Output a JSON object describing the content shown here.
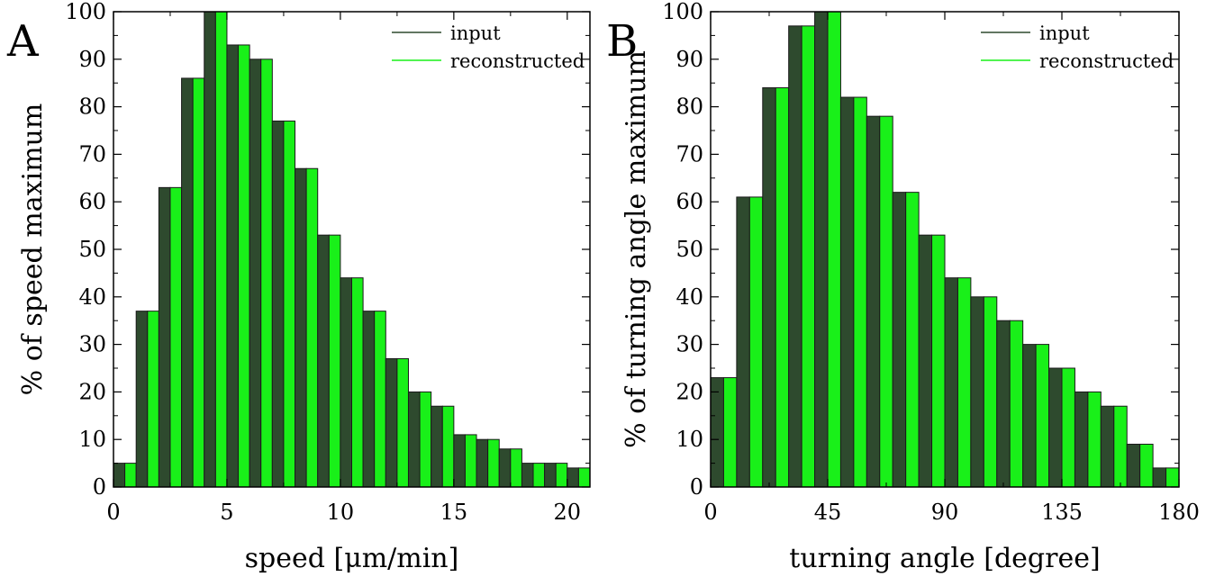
{
  "colors": {
    "input": "#2e4a2e",
    "reconstructed": "#19f019",
    "edge": "#1a1a1a"
  },
  "chart_data": [
    {
      "type": "bar",
      "panel_label": "A",
      "xlabel": "speed [μm/min]",
      "ylabel": "% of speed maximum",
      "xlim": [
        0,
        21
      ],
      "ylim": [
        0,
        100
      ],
      "xticks": [
        0,
        5,
        10,
        15,
        20
      ],
      "yticks": [
        0,
        10,
        20,
        30,
        40,
        50,
        60,
        70,
        80,
        90,
        100
      ],
      "bin_width": 1,
      "bin_starts": [
        0,
        1,
        2,
        3,
        4,
        5,
        6,
        7,
        8,
        9,
        10,
        11,
        12,
        13,
        14,
        15,
        16,
        17,
        18,
        19,
        20
      ],
      "series": [
        {
          "name": "input",
          "values": [
            5,
            37,
            63,
            86,
            100,
            93,
            90,
            77,
            67,
            53,
            44,
            37,
            27,
            20,
            17,
            11,
            10,
            8,
            5,
            5,
            4
          ]
        },
        {
          "name": "reconstructed",
          "values": [
            5,
            37,
            63,
            86,
            100,
            93,
            90,
            77,
            67,
            53,
            44,
            37,
            27,
            20,
            17,
            11,
            10,
            8,
            5,
            5,
            4
          ]
        }
      ],
      "legend_position": "top-right",
      "grid": false
    },
    {
      "type": "bar",
      "panel_label": "B",
      "xlabel": "turning angle [degree]",
      "ylabel": "% of turning angle maximum",
      "xlim": [
        0,
        180
      ],
      "ylim": [
        0,
        100
      ],
      "xticks": [
        0,
        45,
        90,
        135,
        180
      ],
      "yticks": [
        0,
        10,
        20,
        30,
        40,
        50,
        60,
        70,
        80,
        90,
        100
      ],
      "bin_width": 10,
      "bin_starts": [
        0,
        10,
        20,
        30,
        40,
        50,
        60,
        70,
        80,
        90,
        100,
        110,
        120,
        130,
        140,
        150,
        160,
        170
      ],
      "series": [
        {
          "name": "input",
          "values": [
            23,
            61,
            84,
            97,
            100,
            82,
            78,
            62,
            53,
            44,
            40,
            35,
            30,
            25,
            20,
            17,
            9,
            4
          ]
        },
        {
          "name": "reconstructed",
          "values": [
            23,
            61,
            84,
            97,
            100,
            82,
            78,
            62,
            53,
            44,
            40,
            35,
            30,
            25,
            20,
            17,
            9,
            4
          ]
        }
      ],
      "legend_position": "top-right",
      "grid": false
    }
  ]
}
